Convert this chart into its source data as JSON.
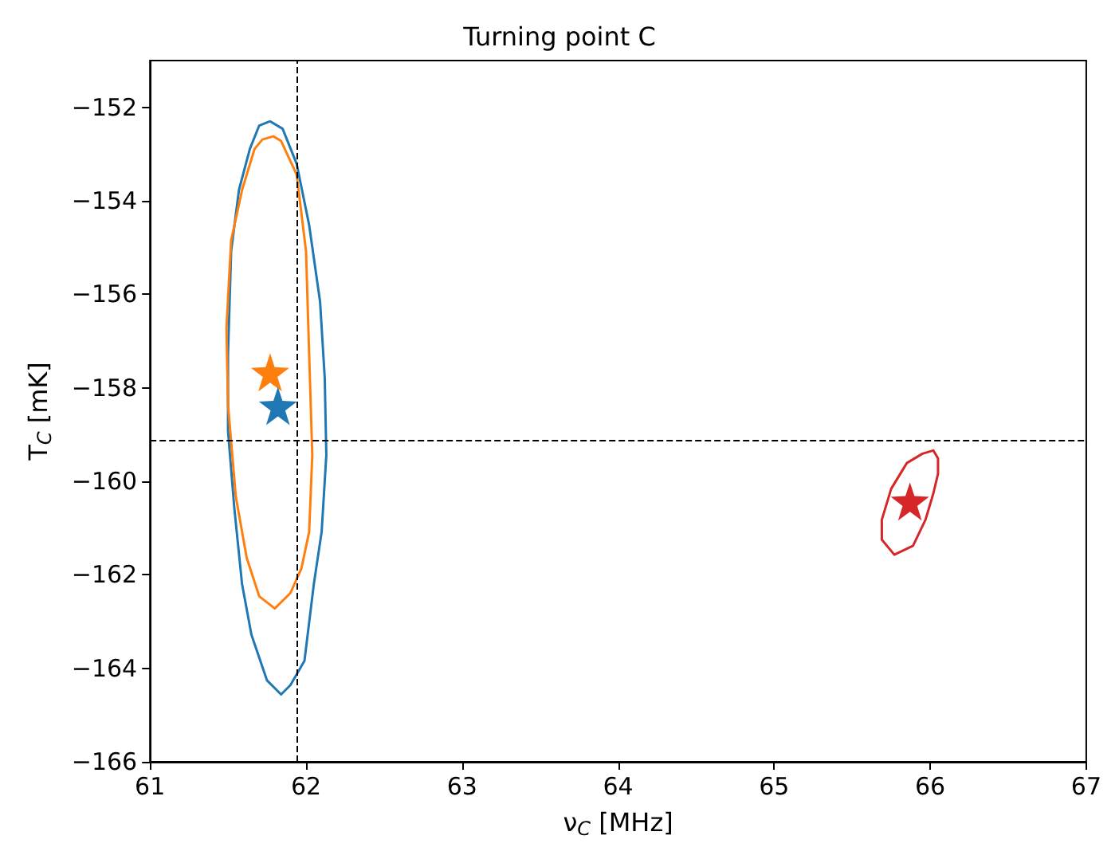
{
  "chart_data": {
    "type": "line",
    "title": "Turning point C",
    "xlabel": "ν$_{C}$ [MHz]",
    "ylabel": "T$_{C}$ [mK]",
    "xlim": [
      61,
      67
    ],
    "xticks": [
      61,
      62,
      63,
      64,
      65,
      66,
      67
    ],
    "ylim": [
      -166,
      -151
    ],
    "yticks": [
      -166,
      -164,
      -162,
      -160,
      -158,
      -156,
      -154,
      -152
    ],
    "grid": false,
    "series": [
      {
        "marker": "none",
        "line_style": "solid",
        "color": "#1f77b4",
        "x": [
          61.77,
          61.85,
          61.94,
          62.02,
          62.09,
          62.12,
          62.13,
          62.1,
          62.05,
          61.99,
          61.9,
          61.84,
          61.75,
          61.65,
          61.59,
          61.54,
          61.5,
          61.5,
          61.52,
          61.57,
          61.64,
          61.7,
          61.76
        ],
        "values": [
          -152.3,
          -152.46,
          -153.21,
          -154.52,
          -156.16,
          -157.8,
          -159.44,
          -161.08,
          -162.2,
          -163.84,
          -164.36,
          -164.56,
          -164.26,
          -163.28,
          -162.2,
          -160.56,
          -158.92,
          -157.28,
          -155.08,
          -153.77,
          -152.89,
          -152.39,
          -152.31
        ]
      },
      {
        "marker": "none",
        "line_style": "solid",
        "color": "#ff7f0e",
        "x": [
          61.79,
          61.84,
          61.94,
          62.0,
          62.02,
          62.04,
          62.02,
          61.97,
          61.9,
          61.8,
          61.7,
          61.62,
          61.55,
          61.5,
          61.49,
          61.52,
          61.59,
          61.67,
          61.72,
          61.78
        ],
        "values": [
          -152.62,
          -152.72,
          -153.44,
          -155.08,
          -157.28,
          -159.44,
          -161.08,
          -161.87,
          -162.39,
          -162.72,
          -162.46,
          -161.64,
          -160.33,
          -158.36,
          -156.72,
          -154.85,
          -153.77,
          -152.89,
          -152.69,
          -152.63
        ]
      },
      {
        "marker": "none",
        "line_style": "solid",
        "color": "#d62728",
        "x": [
          66.02,
          66.05,
          66.05,
          66.02,
          65.97,
          65.89,
          65.77,
          65.69,
          65.69,
          65.75,
          65.85,
          65.95,
          66.01
        ],
        "values": [
          -159.34,
          -159.51,
          -159.84,
          -160.26,
          -160.82,
          -161.38,
          -161.57,
          -161.25,
          -160.82,
          -160.16,
          -159.61,
          -159.41,
          -159.35
        ]
      },
      {
        "type": "scatter",
        "marker": "star",
        "color": "#ff7f0e",
        "x": [
          61.77
        ],
        "values": [
          -157.67
        ]
      },
      {
        "type": "scatter",
        "marker": "star",
        "color": "#1f77b4",
        "x": [
          61.82
        ],
        "values": [
          -158.39
        ]
      },
      {
        "type": "scatter",
        "marker": "star",
        "color": "#d62728",
        "x": [
          65.87
        ],
        "values": [
          -160.43
        ]
      }
    ],
    "ref_lines": [
      {
        "axis": "x",
        "value": 61.94,
        "color": "#000000",
        "line_style": "dashed"
      },
      {
        "axis": "y",
        "value": -159.11,
        "color": "#000000",
        "line_style": "dashed"
      }
    ]
  }
}
